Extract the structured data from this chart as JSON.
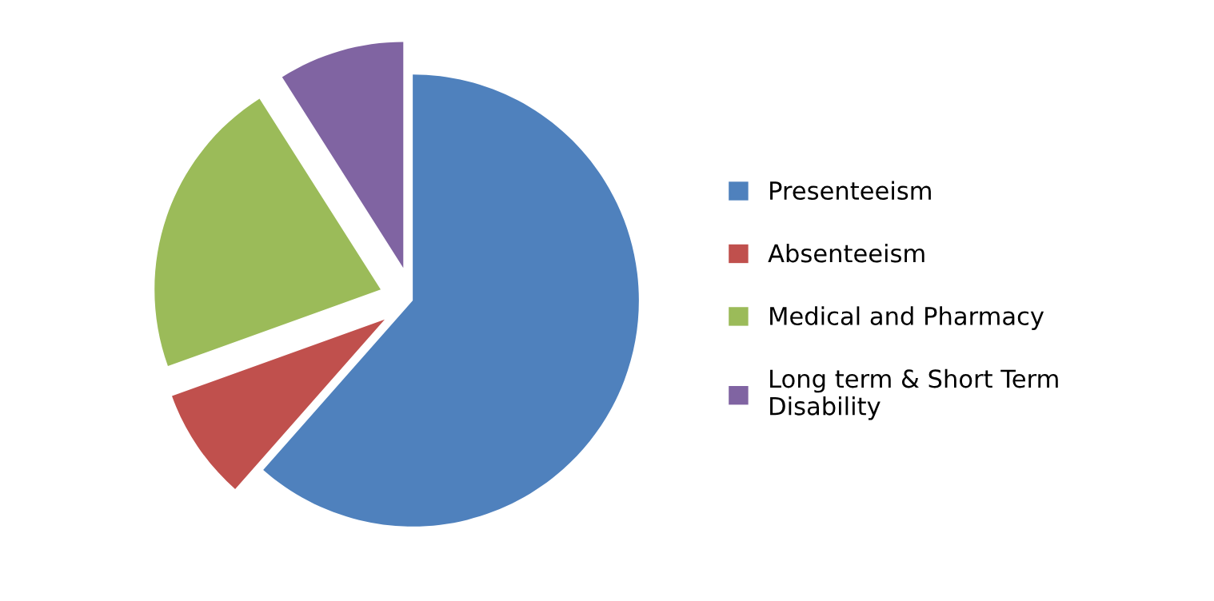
{
  "chart_data": {
    "type": "pie",
    "categories": [
      "Presenteeism",
      "Absenteeism",
      "Medical and Pharmacy",
      "Long term & Short Term\nDisability"
    ],
    "values": [
      61.5,
      8,
      21.5,
      9
    ],
    "colors": [
      "#4f81bd",
      "#c0504d",
      "#9bbb59",
      "#8064a2"
    ],
    "legend": "right"
  }
}
